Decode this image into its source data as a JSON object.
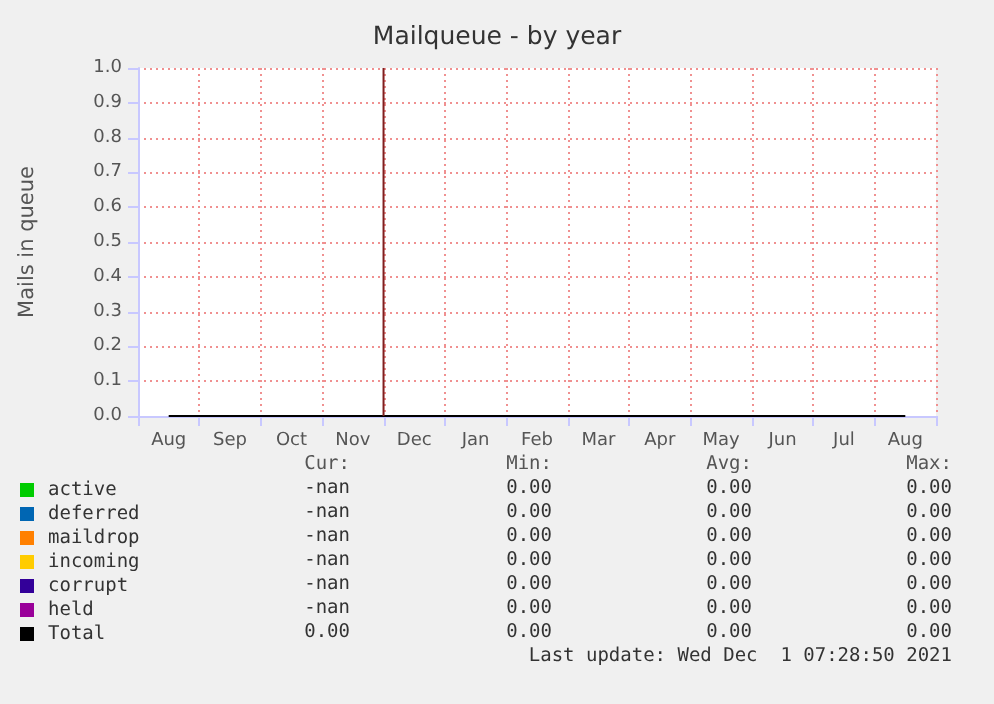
{
  "chart_data": {
    "type": "line",
    "title": "Mailqueue - by year",
    "ylabel": "Mails in queue",
    "categories": [
      "Aug",
      "Sep",
      "Oct",
      "Nov",
      "Dec",
      "Jan",
      "Feb",
      "Mar",
      "Apr",
      "May",
      "Jun",
      "Jul",
      "Aug"
    ],
    "series": [
      {
        "name": "active",
        "color": "#00cc00",
        "values": [
          null,
          null,
          null,
          null,
          null,
          null,
          null,
          null,
          null,
          null,
          null,
          null,
          null
        ]
      },
      {
        "name": "deferred",
        "color": "#0066b3",
        "values": [
          null,
          null,
          null,
          null,
          null,
          null,
          null,
          null,
          null,
          null,
          null,
          null,
          null
        ]
      },
      {
        "name": "maildrop",
        "color": "#ff8000",
        "values": [
          null,
          null,
          null,
          null,
          null,
          null,
          null,
          null,
          null,
          null,
          null,
          null,
          null
        ]
      },
      {
        "name": "incoming",
        "color": "#ffcc00",
        "values": [
          null,
          null,
          null,
          null,
          null,
          null,
          null,
          null,
          null,
          null,
          null,
          null,
          null
        ]
      },
      {
        "name": "corrupt",
        "color": "#330099",
        "values": [
          null,
          null,
          null,
          null,
          null,
          null,
          null,
          null,
          null,
          null,
          null,
          null,
          null
        ]
      },
      {
        "name": "held",
        "color": "#990099",
        "values": [
          null,
          null,
          null,
          null,
          null,
          null,
          null,
          null,
          null,
          null,
          null,
          null,
          null
        ]
      },
      {
        "name": "Total",
        "color": "#000000",
        "values": [
          0,
          0,
          0,
          0,
          0,
          0,
          0,
          0,
          0,
          0,
          0,
          0,
          0
        ]
      }
    ],
    "ylim": [
      0,
      1
    ],
    "yticks": [
      {
        "value": 0,
        "label": "0.0"
      },
      0.1,
      0.2,
      0.3,
      0.4,
      0.5,
      0.6,
      0.7,
      0.8,
      0.9,
      {
        "value": 1,
        "label": "1.0"
      }
    ],
    "grid": true,
    "legend": "bottom left",
    "marker": "none",
    "line_style": "solid",
    "ref_lines": [
      {
        "axis": "x",
        "value": "Dec",
        "color": "#7f1f1f"
      }
    ],
    "annotations": [
      "Cur:",
      "Min:",
      "Avg:",
      "Max:",
      "-nan",
      "0.00",
      "0.00",
      "0.00",
      "-nan",
      "0.00",
      "0.00",
      "0.00",
      "-nan",
      "0.00",
      "0.00",
      "0.00",
      "-nan",
      "0.00",
      "0.00",
      "0.00",
      "-nan",
      "0.00",
      "0.00",
      "0.00",
      "-nan",
      "0.00",
      "0.00",
      "0.00",
      "0.00",
      "0.00",
      "0.00",
      "0.00",
      "Last update: Wed Dec  1 07:28:50 2021"
    ]
  }
}
